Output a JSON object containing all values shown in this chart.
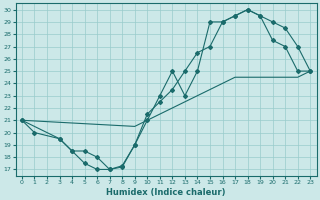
{
  "xlabel": "Humidex (Indice chaleur)",
  "xlim": [
    -0.5,
    23.5
  ],
  "ylim": [
    16.5,
    30.5
  ],
  "xticks": [
    0,
    1,
    2,
    3,
    4,
    5,
    6,
    7,
    8,
    9,
    10,
    11,
    12,
    13,
    14,
    15,
    16,
    17,
    18,
    19,
    20,
    21,
    22,
    23
  ],
  "yticks": [
    17,
    18,
    19,
    20,
    21,
    22,
    23,
    24,
    25,
    26,
    27,
    28,
    29,
    30
  ],
  "bg_color": "#cce8e8",
  "grid_color": "#99cccc",
  "line_color": "#1a6b6b",
  "curve1_x": [
    0,
    1,
    3,
    4,
    5,
    6,
    7,
    8,
    9,
    10,
    11,
    12,
    13,
    14,
    15,
    16,
    17,
    18,
    19,
    20,
    21,
    22,
    23
  ],
  "curve1_y": [
    21,
    20,
    19.5,
    18.5,
    17.5,
    17.0,
    17.0,
    17.3,
    19.0,
    21.5,
    22.5,
    23.5,
    25.0,
    26.5,
    27.0,
    29.0,
    29.5,
    30.0,
    29.5,
    27.5,
    27.0,
    25.0,
    25.0
  ],
  "curve2_x": [
    0,
    3,
    4,
    5,
    6,
    7,
    8,
    9,
    10,
    11,
    12,
    13,
    14,
    15,
    16,
    17,
    18,
    19,
    20,
    21,
    22,
    23
  ],
  "curve2_y": [
    21,
    19.5,
    18.5,
    18.5,
    18.0,
    17.0,
    17.2,
    19.0,
    21.0,
    23.0,
    25.0,
    23.0,
    25.0,
    29.0,
    29.0,
    29.5,
    30.0,
    29.5,
    29.0,
    28.5,
    27.0,
    25.0
  ],
  "curve3_x": [
    0,
    9,
    10,
    11,
    12,
    13,
    14,
    15,
    16,
    17,
    18,
    19,
    20,
    21,
    22,
    23
  ],
  "curve3_y": [
    21,
    20.5,
    21.0,
    21.5,
    22.0,
    22.5,
    23.0,
    23.5,
    24.0,
    24.5,
    24.5,
    24.5,
    24.5,
    24.5,
    24.5,
    25.0
  ]
}
